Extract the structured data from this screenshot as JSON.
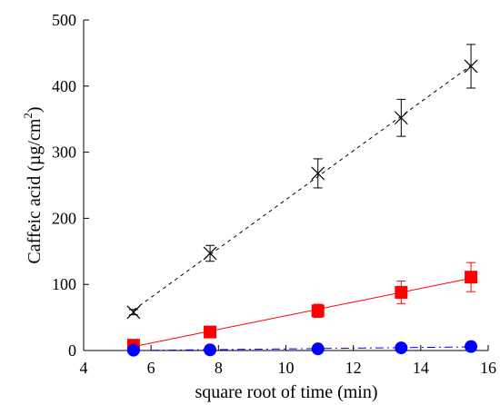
{
  "chart_data": {
    "type": "scatter",
    "title": "",
    "xlabel": "square root of time (min)",
    "ylabel": "Caffeic acid (µg/cm",
    "ylabel_sup": "2",
    "ylabel_close": ")",
    "xlim": [
      4,
      16
    ],
    "ylim": [
      0,
      500
    ],
    "xticks": [
      "4",
      "6",
      "8",
      "10",
      "12",
      "14",
      "16"
    ],
    "yticks": [
      "0",
      "100",
      "200",
      "300",
      "400",
      "500"
    ],
    "grid": false,
    "legend": "none",
    "series": [
      {
        "marker": "x",
        "color": "#000000",
        "line": "dashed",
        "x": [
          5.48,
          7.75,
          10.95,
          13.42,
          15.49
        ],
        "y": [
          58,
          147,
          268,
          352,
          430
        ],
        "err": [
          4,
          12,
          22,
          28,
          33
        ]
      },
      {
        "marker": "square",
        "color": "#ff0000",
        "line": "solid",
        "x": [
          5.48,
          7.75,
          10.95,
          13.42,
          15.49
        ],
        "y": [
          8,
          28,
          60,
          88,
          111
        ],
        "err": [
          2,
          4,
          10,
          17,
          22
        ]
      },
      {
        "marker": "circle",
        "color": "#0000ff",
        "line": "dashdot",
        "x": [
          5.48,
          7.75,
          10.95,
          13.42,
          15.49
        ],
        "y": [
          0.5,
          1,
          2.5,
          4,
          6
        ],
        "err": [
          0,
          0,
          0.5,
          1,
          1
        ]
      }
    ]
  }
}
